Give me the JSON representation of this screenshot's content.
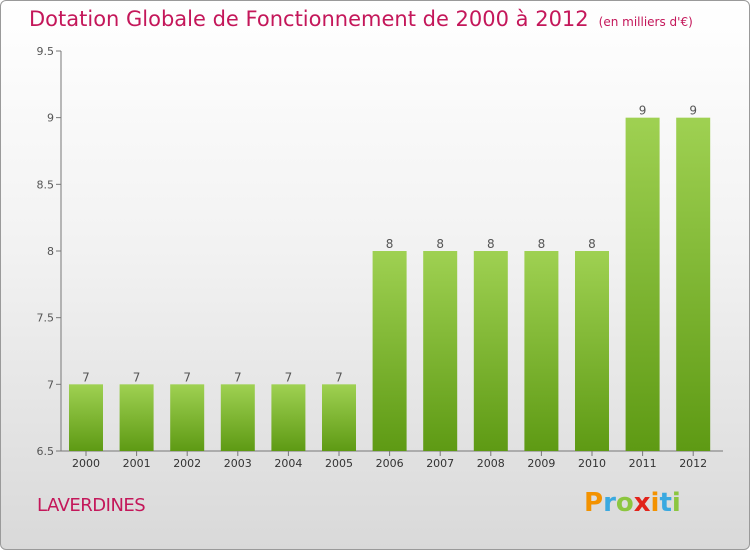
{
  "title": "Dotation Globale de Fonctionnement de 2000 à 2012",
  "unit": "(en milliers d'€)",
  "commune": "LAVERDINES",
  "brand": {
    "letters": [
      "P",
      "r",
      "o",
      "x",
      "i",
      "t",
      "i"
    ],
    "colors": [
      "#f39200",
      "#3aa9e0",
      "#8cc63f",
      "#e2231a",
      "#f39200",
      "#3aa9e0",
      "#8cc63f"
    ]
  },
  "colors": {
    "bar_top": "#9fd152",
    "bar_bottom": "#5e9a14",
    "title": "#c4175a"
  },
  "chart_data": {
    "type": "bar",
    "categories": [
      "2000",
      "2001",
      "2002",
      "2003",
      "2004",
      "2005",
      "2006",
      "2007",
      "2008",
      "2009",
      "2010",
      "2011",
      "2012"
    ],
    "values": [
      7,
      7,
      7,
      7,
      7,
      7,
      8,
      8,
      8,
      8,
      8,
      9,
      9
    ],
    "data_labels": [
      "7",
      "7",
      "7",
      "7",
      "7",
      "7",
      "8",
      "8",
      "8",
      "8",
      "8",
      "9",
      "9"
    ],
    "title": "Dotation Globale de Fonctionnement de 2000 à 2012",
    "xlabel": "",
    "ylabel": "",
    "ylim": [
      6.5,
      9.5
    ],
    "yticks": [
      6.5,
      7,
      7.5,
      8,
      8.5,
      9,
      9.5
    ],
    "ytick_labels": [
      "6.5",
      "7",
      "7.5",
      "8",
      "8.5",
      "9",
      "9.5"
    ],
    "grid": false,
    "legend": false
  }
}
